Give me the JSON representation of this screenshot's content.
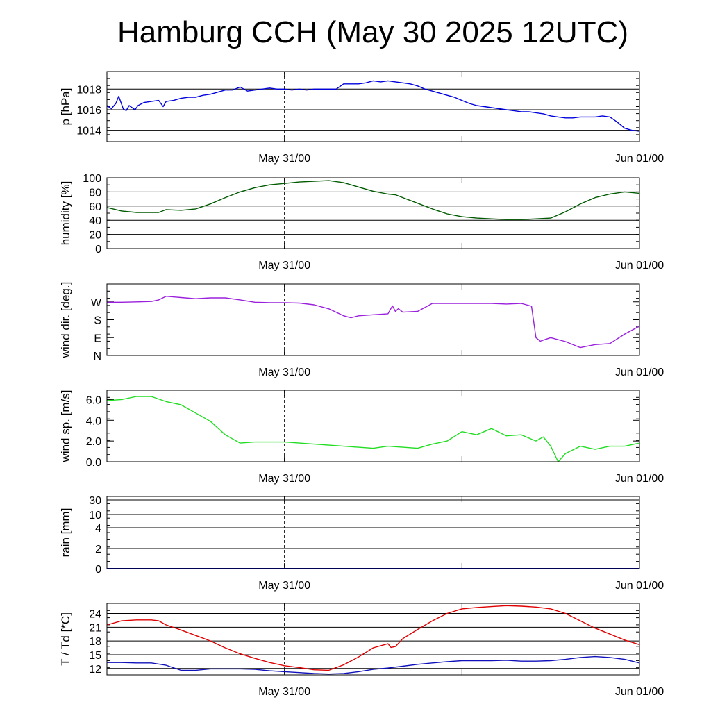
{
  "title": "Hamburg CCH (May 30 2025 12UTC)",
  "colors": {
    "pressure": "#0000dd",
    "humidity": "#005a00",
    "wind_dir": "#9b20dd",
    "wind_speed": "#22dd22",
    "rain": "#0000aa",
    "temperature": "#e00000",
    "dewpoint": "#1111bb"
  },
  "chart_data": [
    {
      "type": "line",
      "id": "pressure",
      "ylabel": "p [hPa]",
      "xlim": [
        0,
        36
      ],
      "xticks": [
        {
          "x": 12,
          "label": "May 31/00"
        },
        {
          "x": 36,
          "label": "Jun 01/00"
        }
      ],
      "ylim": [
        1012.9,
        1019.7
      ],
      "yticks": [
        1014,
        1016,
        1018
      ],
      "grid": true,
      "series": [
        {
          "x": [
            0,
            0.3,
            0.6,
            0.8,
            1.1,
            1.3,
            1.5,
            1.7,
            1.9,
            2.1,
            2.5,
            3,
            3.5,
            3.8,
            4,
            4.5,
            5,
            5.5,
            6,
            6.5,
            7,
            7.5,
            8,
            8.5,
            9,
            9.5,
            10,
            10.5,
            11,
            11.5,
            12,
            12.5,
            13,
            13.5,
            14,
            14.5,
            15,
            15.5,
            16,
            16.5,
            17,
            17.5,
            18,
            18.5,
            19,
            19.5,
            20,
            20.5,
            21,
            21.5,
            22,
            22.5,
            23,
            23.5,
            24,
            24.5,
            25,
            25.5,
            26,
            26.5,
            27,
            27.5,
            28,
            28.5,
            29,
            29.5,
            30,
            30.5,
            31,
            31.5,
            32,
            32.5,
            33,
            33.5,
            34,
            34.5,
            35,
            35.5,
            36
          ],
          "y": [
            1016.4,
            1016.1,
            1016.6,
            1017.3,
            1016.1,
            1015.9,
            1016.4,
            1016.2,
            1016.0,
            1016.4,
            1016.7,
            1016.8,
            1016.9,
            1016.3,
            1016.8,
            1016.9,
            1017.1,
            1017.2,
            1017.2,
            1017.4,
            1017.5,
            1017.7,
            1017.9,
            1017.9,
            1018.2,
            1017.8,
            1017.9,
            1018.0,
            1018.1,
            1018.0,
            1018.0,
            1017.9,
            1018.0,
            1017.9,
            1018.0,
            1018.0,
            1018.0,
            1018.0,
            1018.5,
            1018.5,
            1018.5,
            1018.6,
            1018.8,
            1018.7,
            1018.8,
            1018.7,
            1018.6,
            1018.5,
            1018.3,
            1018.0,
            1017.8,
            1017.6,
            1017.4,
            1017.2,
            1016.9,
            1016.6,
            1016.4,
            1016.3,
            1016.2,
            1016.1,
            1016.0,
            1015.9,
            1015.8,
            1015.8,
            1015.7,
            1015.6,
            1015.4,
            1015.3,
            1015.2,
            1015.2,
            1015.3,
            1015.3,
            1015.3,
            1015.4,
            1015.3,
            1014.8,
            1014.2,
            1014.0,
            1013.9
          ]
        }
      ]
    },
    {
      "type": "line",
      "id": "humidity",
      "ylabel": "humidity [%]",
      "xlim": [
        0,
        36
      ],
      "xticks": [
        {
          "x": 12,
          "label": "May 31/00"
        },
        {
          "x": 36,
          "label": "Jun 01/00"
        }
      ],
      "ylim": [
        0,
        100
      ],
      "yticks": [
        0,
        20,
        40,
        60,
        80,
        100
      ],
      "grid": true,
      "series": [
        {
          "x": [
            0,
            1,
            2,
            3,
            3.5,
            4,
            5,
            6,
            7,
            8,
            9,
            10,
            11,
            12,
            13,
            14,
            15,
            16,
            17,
            18,
            19,
            19.5,
            20,
            21,
            22,
            23,
            24,
            25,
            26,
            27,
            28,
            29,
            30,
            31,
            32,
            33,
            34,
            35,
            36
          ],
          "y": [
            58,
            53,
            51,
            51,
            51,
            55,
            54,
            56,
            63,
            72,
            80,
            86,
            90,
            92,
            94,
            95,
            96,
            93,
            87,
            81,
            77,
            76,
            72,
            64,
            56,
            49,
            45,
            43,
            42,
            41,
            41,
            42,
            43,
            52,
            63,
            72,
            77,
            80,
            78
          ]
        }
      ]
    },
    {
      "type": "line",
      "id": "wind_dir",
      "ylabel": "wind dir. [deg.]",
      "xlim": [
        0,
        36
      ],
      "xticks": [
        {
          "x": 12,
          "label": "May 31/00"
        },
        {
          "x": 36,
          "label": "Jun 01/00"
        }
      ],
      "ylim": [
        0,
        360
      ],
      "yticks": [
        {
          "v": 0,
          "label": "N"
        },
        {
          "v": 90,
          "label": "E"
        },
        {
          "v": 180,
          "label": "S"
        },
        {
          "v": 270,
          "label": "W"
        }
      ],
      "grid": false,
      "series": [
        {
          "x": [
            0,
            1,
            2,
            3,
            3.5,
            4,
            5,
            6,
            7,
            8,
            9,
            10,
            11,
            12,
            13,
            14,
            15,
            16,
            16.5,
            17,
            18,
            19,
            19.3,
            19.5,
            19.7,
            20,
            21,
            22,
            23,
            24,
            25,
            26,
            27,
            28,
            28.7,
            29,
            29.3,
            29.6,
            30,
            31,
            32,
            33,
            34,
            35,
            36
          ],
          "y": [
            268,
            268,
            270,
            272,
            280,
            298,
            292,
            286,
            290,
            290,
            280,
            268,
            266,
            266,
            264,
            255,
            235,
            200,
            190,
            200,
            205,
            210,
            250,
            222,
            236,
            218,
            222,
            262,
            262,
            262,
            262,
            262,
            259,
            262,
            248,
            90,
            72,
            80,
            90,
            70,
            40,
            55,
            60,
            108,
            148
          ]
        }
      ]
    },
    {
      "type": "line",
      "id": "wind_speed",
      "ylabel": "wind sp. [m/s]",
      "xlim": [
        0,
        36
      ],
      "xticks": [
        {
          "x": 12,
          "label": "May 31/00"
        },
        {
          "x": 36,
          "label": "Jun 01/00"
        }
      ],
      "ylim": [
        0,
        6.9
      ],
      "yticks": [
        {
          "v": 0,
          "label": "0.0"
        },
        {
          "v": 2,
          "label": "2.0"
        },
        {
          "v": 4,
          "label": "4.0"
        },
        {
          "v": 6,
          "label": "6.0"
        }
      ],
      "grid": false,
      "series": [
        {
          "x": [
            0,
            1,
            2,
            3,
            4,
            5,
            6,
            7,
            8,
            9,
            10,
            11,
            12,
            13,
            14,
            15,
            16,
            17,
            18,
            19,
            20,
            21,
            22,
            23,
            24,
            25,
            26,
            27,
            28,
            29,
            29.5,
            30,
            30.5,
            31,
            32,
            33,
            34,
            35,
            36
          ],
          "y": [
            5.9,
            6.0,
            6.3,
            6.3,
            5.8,
            5.5,
            4.7,
            3.9,
            2.6,
            1.8,
            1.9,
            1.9,
            1.9,
            1.8,
            1.7,
            1.6,
            1.5,
            1.4,
            1.3,
            1.5,
            1.4,
            1.3,
            1.7,
            2.0,
            2.9,
            2.6,
            3.2,
            2.5,
            2.6,
            2.0,
            2.4,
            1.5,
            0.0,
            0.8,
            1.5,
            1.2,
            1.5,
            1.5,
            1.8
          ]
        }
      ]
    },
    {
      "type": "line",
      "id": "rain",
      "ylabel": "rain [mm]",
      "xlim": [
        0,
        36
      ],
      "xticks": [
        {
          "x": 12,
          "label": "May 31/00"
        },
        {
          "x": 36,
          "label": "Jun 01/00"
        }
      ],
      "yscale": "nonlinear",
      "yticks": [
        0,
        2,
        4,
        10,
        30
      ],
      "grid": true,
      "series": [
        {
          "x": [
            0,
            36
          ],
          "y": [
            0,
            0
          ]
        }
      ]
    },
    {
      "type": "line",
      "id": "temperature",
      "ylabel": "T / Td [*C]",
      "xlim": [
        0,
        36
      ],
      "xticks": [
        {
          "x": 12,
          "label": "May 31/00"
        },
        {
          "x": 36,
          "label": "Jun 01/00"
        }
      ],
      "ylim": [
        10.6,
        26.2
      ],
      "yticks": [
        12,
        15,
        18,
        21,
        24
      ],
      "grid": true,
      "series": [
        {
          "x": [
            0,
            1,
            2,
            3,
            3.5,
            4,
            5,
            6,
            7,
            8,
            9,
            10,
            11,
            12,
            13,
            14,
            15,
            16,
            17,
            18,
            19,
            19.2,
            19.5,
            20,
            21,
            22,
            23,
            24,
            25,
            26,
            27,
            28,
            29,
            30,
            31,
            32,
            33,
            34,
            35,
            36
          ],
          "y": [
            21.5,
            22.4,
            22.6,
            22.6,
            22.4,
            21.5,
            20.4,
            19.2,
            18.0,
            16.5,
            15.2,
            14.2,
            13.3,
            12.6,
            12.2,
            11.7,
            11.6,
            12.8,
            14.5,
            16.5,
            17.4,
            16.6,
            16.8,
            18.5,
            20.5,
            22.4,
            24.0,
            25.0,
            25.3,
            25.5,
            25.7,
            25.6,
            25.4,
            25.0,
            24.0,
            22.4,
            20.8,
            19.5,
            18.2,
            17.2
          ]
        },
        {
          "x": [
            0,
            1,
            2,
            3,
            4,
            5,
            6,
            7,
            8,
            9,
            10,
            11,
            12,
            13,
            14,
            15,
            16,
            17,
            18,
            19,
            20,
            21,
            22,
            23,
            24,
            25,
            26,
            27,
            28,
            29,
            30,
            31,
            32,
            33,
            34,
            35,
            36
          ],
          "y": [
            13.3,
            13.3,
            13.2,
            13.2,
            12.7,
            11.6,
            11.6,
            11.9,
            11.9,
            11.9,
            11.8,
            11.5,
            11.3,
            11.1,
            10.9,
            10.8,
            10.9,
            11.3,
            11.8,
            12.1,
            12.5,
            12.9,
            13.2,
            13.5,
            13.7,
            13.7,
            13.7,
            13.8,
            13.6,
            13.6,
            13.7,
            14.0,
            14.4,
            14.6,
            14.4,
            14.0,
            13.2
          ]
        }
      ]
    }
  ]
}
